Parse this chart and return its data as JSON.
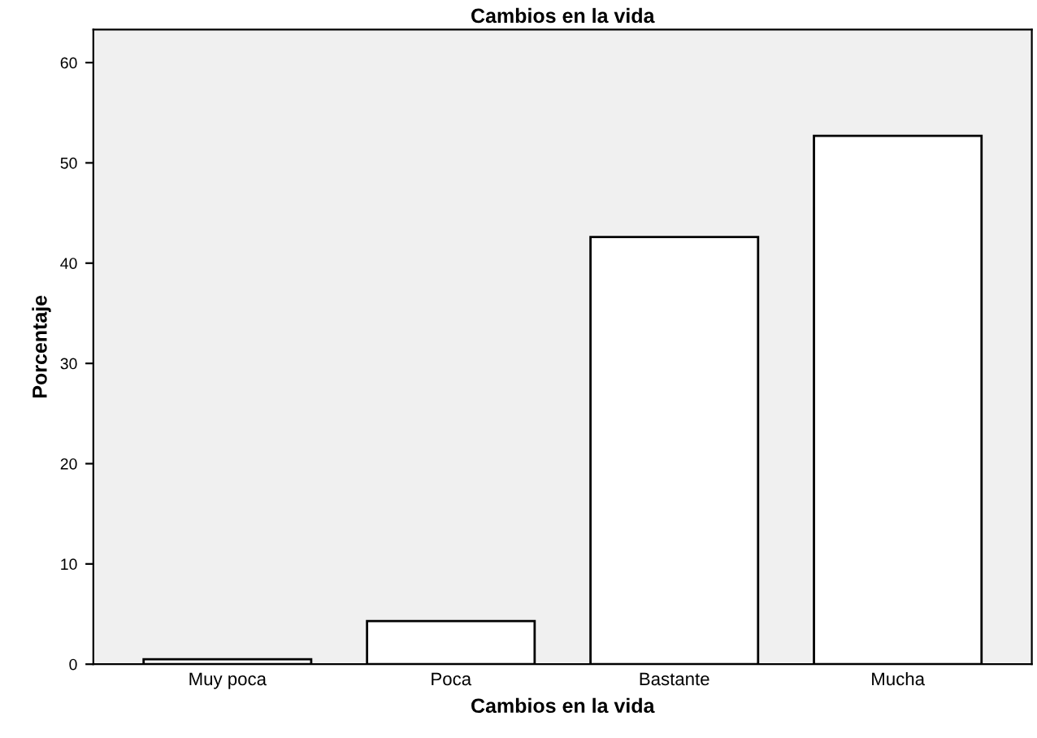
{
  "chart_data": {
    "type": "bar",
    "title": "Cambios en la vida",
    "xlabel": "Cambios en la vida",
    "ylabel": "Porcentaje",
    "categories": [
      "Muy poca",
      "Poca",
      "Bastante",
      "Mucha"
    ],
    "values": [
      0.5,
      4.3,
      42.6,
      52.7
    ],
    "color": "#ffffff",
    "ylim": [
      0,
      63.3
    ],
    "yticks": [
      0,
      10,
      20,
      30,
      40,
      50,
      60
    ],
    "grid": false
  }
}
